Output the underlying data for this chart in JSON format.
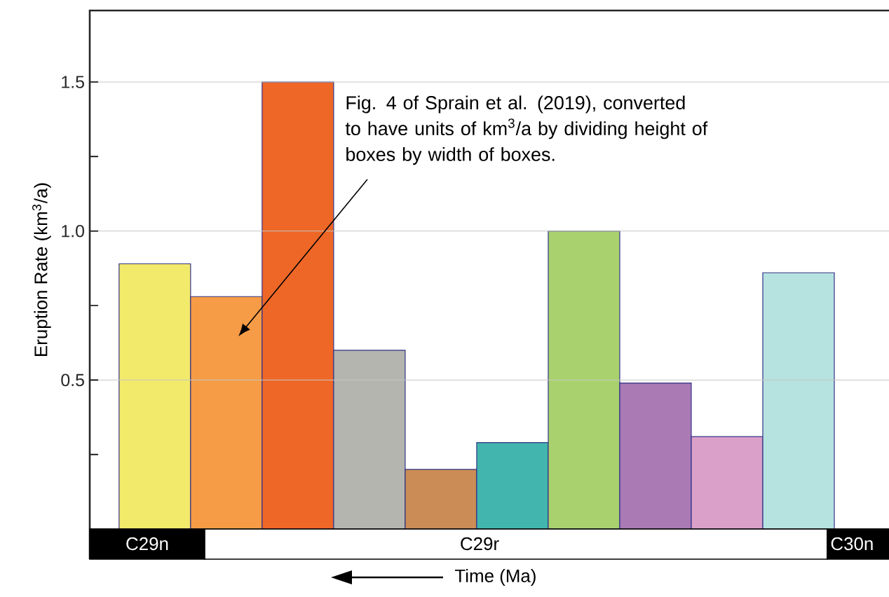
{
  "chart_data": {
    "type": "bar",
    "ylabel": "Eruption Rate (km$^{3}$/a)",
    "xlabel": "Time (Ma)",
    "categories": [
      null,
      null,
      null,
      null,
      null,
      null,
      null,
      null,
      null,
      null
    ],
    "values": [
      0.89,
      0.78,
      1.5,
      0.6,
      0.2,
      0.29,
      1.0,
      0.49,
      0.31,
      0.86
    ],
    "colors": [
      "#f2ea6a",
      "#f69c46",
      "#ee6726",
      "#b3b5ae",
      "#cb8c55",
      "#42b6ae",
      "#a9d16e",
      "#aa7ab5",
      "#dba0c9",
      "#b6e2e0"
    ],
    "ylim": [
      0,
      1.74
    ],
    "yticks": [
      {
        "value": 0.25,
        "label": null
      },
      0.5,
      {
        "value": 0.75,
        "label": null
      },
      {
        "value": 1,
        "label": "1.0"
      },
      {
        "value": 1.25,
        "label": null
      },
      1.5
    ],
    "grid": "y",
    "annotations": [
      "Fig. 4 of Sprain et al. (2019), converted to have units of km$^{3}$/a by dividing height of boxes by width of boxes.",
      "C29n",
      "C29r",
      "C30n"
    ]
  }
}
